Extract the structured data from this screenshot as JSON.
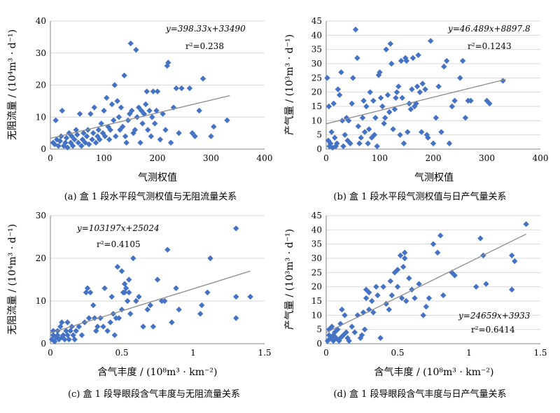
{
  "chart_data": [
    {
      "type": "scatter",
      "caption": "(a) 盒 1 段水平段气测权值与无阻流量关系",
      "xlabel": "气测权值",
      "ylabel": "无阻流量 / (10⁴m³ · d⁻¹)",
      "xlim": [
        0,
        400
      ],
      "ylim": [
        0,
        40
      ],
      "xticks": [
        "0",
        "100",
        "200",
        "300",
        "400"
      ],
      "yticks": [
        "0",
        "10",
        "20",
        "30",
        "40"
      ],
      "equation": "y=398.33x+33490",
      "r2": "r²=0.238",
      "trend": [
        [
          0,
          3.35
        ],
        [
          335,
          16.7
        ]
      ],
      "grid": "horizontal",
      "marker_color": "#4472C4",
      "points": [
        [
          5,
          2
        ],
        [
          8,
          1.5
        ],
        [
          10,
          9
        ],
        [
          12,
          3
        ],
        [
          15,
          1
        ],
        [
          18,
          2.5
        ],
        [
          20,
          4
        ],
        [
          22,
          12
        ],
        [
          25,
          1
        ],
        [
          28,
          2
        ],
        [
          30,
          3.5
        ],
        [
          32,
          0.5
        ],
        [
          35,
          5
        ],
        [
          38,
          2
        ],
        [
          40,
          4
        ],
        [
          42,
          1
        ],
        [
          45,
          3
        ],
        [
          48,
          6
        ],
        [
          50,
          4.5
        ],
        [
          52,
          2
        ],
        [
          55,
          11
        ],
        [
          58,
          1
        ],
        [
          60,
          3
        ],
        [
          62,
          5
        ],
        [
          65,
          2
        ],
        [
          68,
          4
        ],
        [
          70,
          6
        ],
        [
          72,
          1.5
        ],
        [
          75,
          11
        ],
        [
          78,
          3
        ],
        [
          80,
          5
        ],
        [
          82,
          13
        ],
        [
          85,
          2
        ],
        [
          88,
          4
        ],
        [
          90,
          6
        ],
        [
          92,
          3
        ],
        [
          95,
          8
        ],
        [
          98,
          5
        ],
        [
          100,
          12
        ],
        [
          102,
          4
        ],
        [
          105,
          16
        ],
        [
          108,
          7
        ],
        [
          110,
          3
        ],
        [
          112,
          6
        ],
        [
          115,
          14
        ],
        [
          118,
          9
        ],
        [
          120,
          20
        ],
        [
          122,
          4
        ],
        [
          125,
          15
        ],
        [
          128,
          10
        ],
        [
          130,
          6
        ],
        [
          132,
          13
        ],
        [
          135,
          7
        ],
        [
          138,
          23
        ],
        [
          140,
          4
        ],
        [
          142,
          2
        ],
        [
          145,
          9
        ],
        [
          148,
          11
        ],
        [
          150,
          33
        ],
        [
          152,
          12
        ],
        [
          155,
          5
        ],
        [
          158,
          6
        ],
        [
          160,
          31
        ],
        [
          162,
          10
        ],
        [
          165,
          13
        ],
        [
          168,
          2
        ],
        [
          170,
          12
        ],
        [
          172,
          8
        ],
        [
          175,
          11
        ],
        [
          178,
          14
        ],
        [
          180,
          18
        ],
        [
          182,
          6
        ],
        [
          185,
          12
        ],
        [
          188,
          4
        ],
        [
          190,
          10
        ],
        [
          192,
          18
        ],
        [
          195,
          8
        ],
        [
          198,
          12
        ],
        [
          200,
          18
        ],
        [
          205,
          3
        ],
        [
          210,
          11
        ],
        [
          215,
          6
        ],
        [
          218,
          26
        ],
        [
          220,
          27
        ],
        [
          225,
          2
        ],
        [
          230,
          13
        ],
        [
          235,
          19
        ],
        [
          240,
          5
        ],
        [
          245,
          19
        ],
        [
          260,
          19
        ],
        [
          265,
          5
        ],
        [
          270,
          4
        ],
        [
          278,
          12
        ],
        [
          285,
          22
        ],
        [
          300,
          4
        ],
        [
          305,
          7
        ],
        [
          330,
          9
        ]
      ]
    },
    {
      "type": "scatter",
      "caption": "(b) 盒 1 段水平段气测权值与日产气量关系",
      "xlabel": "气测权值",
      "ylabel": "产气量 / (10³m³ · d⁻¹)",
      "xlim": [
        0,
        400
      ],
      "ylim": [
        0,
        45
      ],
      "xticks": [
        "0",
        "100",
        "200",
        "300",
        "400"
      ],
      "yticks": [
        "0",
        "5",
        "10",
        "15",
        "20",
        "25",
        "30",
        "35",
        "40",
        "45"
      ],
      "equation": "y=46.489x+8897.8",
      "r2": "r²=0.1243",
      "trend": [
        [
          0,
          8.9
        ],
        [
          335,
          24.5
        ]
      ],
      "grid": "horizontal",
      "marker_color": "#4472C4",
      "points": [
        [
          2,
          25
        ],
        [
          4,
          3
        ],
        [
          5,
          15
        ],
        [
          6,
          1
        ],
        [
          8,
          2
        ],
        [
          10,
          6
        ],
        [
          12,
          0.5
        ],
        [
          14,
          16
        ],
        [
          16,
          4
        ],
        [
          18,
          1
        ],
        [
          20,
          2
        ],
        [
          22,
          21
        ],
        [
          25,
          19
        ],
        [
          28,
          27
        ],
        [
          30,
          10
        ],
        [
          32,
          1
        ],
        [
          35,
          5
        ],
        [
          38,
          11
        ],
        [
          40,
          3
        ],
        [
          42,
          10
        ],
        [
          45,
          2
        ],
        [
          48,
          16
        ],
        [
          50,
          25
        ],
        [
          55,
          42
        ],
        [
          58,
          32
        ],
        [
          60,
          8
        ],
        [
          62,
          2
        ],
        [
          65,
          4
        ],
        [
          68,
          11
        ],
        [
          70,
          17
        ],
        [
          72,
          6
        ],
        [
          75,
          15
        ],
        [
          78,
          2
        ],
        [
          80,
          7
        ],
        [
          82,
          20
        ],
        [
          85,
          4
        ],
        [
          88,
          17
        ],
        [
          90,
          5
        ],
        [
          92,
          11
        ],
        [
          95,
          1
        ],
        [
          98,
          26
        ],
        [
          100,
          27
        ],
        [
          102,
          18
        ],
        [
          105,
          15
        ],
        [
          108,
          9
        ],
        [
          110,
          11
        ],
        [
          112,
          35
        ],
        [
          115,
          19
        ],
        [
          118,
          13
        ],
        [
          120,
          37
        ],
        [
          122,
          30
        ],
        [
          125,
          7
        ],
        [
          128,
          14
        ],
        [
          130,
          18
        ],
        [
          132,
          20
        ],
        [
          135,
          22
        ],
        [
          138,
          5
        ],
        [
          140,
          31
        ],
        [
          142,
          18
        ],
        [
          145,
          2
        ],
        [
          148,
          32
        ],
        [
          150,
          31
        ],
        [
          152,
          6
        ],
        [
          155,
          16
        ],
        [
          158,
          14
        ],
        [
          160,
          21
        ],
        [
          162,
          32
        ],
        [
          165,
          15
        ],
        [
          168,
          16
        ],
        [
          170,
          22
        ],
        [
          172,
          33
        ],
        [
          175,
          20
        ],
        [
          178,
          6
        ],
        [
          180,
          23
        ],
        [
          185,
          21
        ],
        [
          188,
          5
        ],
        [
          190,
          4
        ],
        [
          195,
          38
        ],
        [
          200,
          2
        ],
        [
          205,
          11
        ],
        [
          210,
          22
        ],
        [
          215,
          6
        ],
        [
          220,
          29
        ],
        [
          225,
          31
        ],
        [
          230,
          2
        ],
        [
          235,
          15
        ],
        [
          240,
          17
        ],
        [
          250,
          25
        ],
        [
          255,
          31
        ],
        [
          260,
          11
        ],
        [
          265,
          17
        ],
        [
          270,
          17
        ],
        [
          300,
          17
        ],
        [
          305,
          16
        ],
        [
          330,
          24
        ]
      ]
    },
    {
      "type": "scatter",
      "caption": "(c) 盒 1 段导眼段含气丰度与无阻流量关系",
      "xlabel": "含气丰度 / (10⁸m³ · km⁻²)",
      "ylabel": "无阻流量 / (10⁴m³ · d⁻¹)",
      "xlim": [
        0,
        1.5
      ],
      "ylim": [
        0,
        30
      ],
      "xticks": [
        "0",
        "0.5",
        "1",
        "1.5"
      ],
      "yticks": [
        "0",
        "10",
        "20",
        "30"
      ],
      "equation": "y=103197x+25024",
      "r2": "r²=0.4105",
      "trend": [
        [
          0,
          2.5
        ],
        [
          1.4,
          17.0
        ]
      ],
      "grid": "horizontal",
      "marker_color": "#4472C4",
      "points": [
        [
          0.01,
          1
        ],
        [
          0.02,
          2
        ],
        [
          0.02,
          3
        ],
        [
          0.03,
          0.5
        ],
        [
          0.04,
          1.5
        ],
        [
          0.05,
          2
        ],
        [
          0.05,
          3
        ],
        [
          0.06,
          1
        ],
        [
          0.07,
          4
        ],
        [
          0.08,
          1.5
        ],
        [
          0.08,
          5
        ],
        [
          0.09,
          2
        ],
        [
          0.1,
          1
        ],
        [
          0.11,
          3
        ],
        [
          0.12,
          2
        ],
        [
          0.12,
          5
        ],
        [
          0.13,
          1
        ],
        [
          0.14,
          3
        ],
        [
          0.15,
          4
        ],
        [
          0.16,
          2
        ],
        [
          0.17,
          1
        ],
        [
          0.18,
          3
        ],
        [
          0.2,
          4
        ],
        [
          0.22,
          2
        ],
        [
          0.24,
          5
        ],
        [
          0.25,
          12
        ],
        [
          0.26,
          13
        ],
        [
          0.27,
          6
        ],
        [
          0.28,
          12
        ],
        [
          0.3,
          9
        ],
        [
          0.31,
          6
        ],
        [
          0.32,
          3
        ],
        [
          0.33,
          4
        ],
        [
          0.35,
          6
        ],
        [
          0.37,
          4
        ],
        [
          0.38,
          13
        ],
        [
          0.4,
          3
        ],
        [
          0.42,
          5
        ],
        [
          0.43,
          11
        ],
        [
          0.44,
          7
        ],
        [
          0.45,
          2
        ],
        [
          0.46,
          6
        ],
        [
          0.47,
          18
        ],
        [
          0.48,
          6
        ],
        [
          0.5,
          8
        ],
        [
          0.5,
          17
        ],
        [
          0.51,
          12
        ],
        [
          0.52,
          12
        ],
        [
          0.52,
          14
        ],
        [
          0.53,
          13
        ],
        [
          0.54,
          10
        ],
        [
          0.55,
          15
        ],
        [
          0.55,
          12
        ],
        [
          0.56,
          7
        ],
        [
          0.58,
          20
        ],
        [
          0.6,
          10
        ],
        [
          0.62,
          11
        ],
        [
          0.65,
          4
        ],
        [
          0.68,
          8
        ],
        [
          0.7,
          9
        ],
        [
          0.72,
          4
        ],
        [
          0.75,
          15
        ],
        [
          0.78,
          10
        ],
        [
          0.8,
          10
        ],
        [
          0.82,
          22
        ],
        [
          0.85,
          5
        ],
        [
          0.88,
          13
        ],
        [
          0.9,
          8
        ],
        [
          1.05,
          7
        ],
        [
          1.06,
          9
        ],
        [
          1.1,
          12
        ],
        [
          1.12,
          20
        ],
        [
          1.3,
          6
        ],
        [
          1.3,
          27
        ],
        [
          1.3,
          11
        ],
        [
          1.4,
          11
        ]
      ]
    },
    {
      "type": "scatter",
      "caption": "(d) 盒 1 段导眼段含气丰度与日产气量关系",
      "xlabel": "含气丰度 / (10⁸m³ · km⁻²)",
      "ylabel": "产气量 / (10³m³ · d⁻¹)",
      "xlim": [
        0,
        1.5
      ],
      "ylim": [
        0,
        45
      ],
      "xticks": [
        "0",
        "0.5",
        "1",
        "1.5"
      ],
      "yticks": [
        "0",
        "5",
        "10",
        "15",
        "20",
        "25",
        "30",
        "35",
        "40",
        "45"
      ],
      "equation": "y=24659x+3933",
      "r2": "r²=0.6414",
      "trend": [
        [
          0,
          3.9
        ],
        [
          1.4,
          38.5
        ]
      ],
      "grid": "horizontal",
      "marker_color": "#4472C4",
      "points": [
        [
          0.01,
          1
        ],
        [
          0.02,
          3
        ],
        [
          0.02,
          5
        ],
        [
          0.03,
          2
        ],
        [
          0.04,
          6
        ],
        [
          0.05,
          1
        ],
        [
          0.05,
          3
        ],
        [
          0.06,
          4
        ],
        [
          0.07,
          2
        ],
        [
          0.08,
          5
        ],
        [
          0.09,
          1
        ],
        [
          0.1,
          2
        ],
        [
          0.1,
          7
        ],
        [
          0.11,
          12
        ],
        [
          0.12,
          3
        ],
        [
          0.13,
          10
        ],
        [
          0.14,
          4
        ],
        [
          0.15,
          2
        ],
        [
          0.16,
          1
        ],
        [
          0.18,
          6
        ],
        [
          0.2,
          4
        ],
        [
          0.22,
          10
        ],
        [
          0.24,
          2
        ],
        [
          0.25,
          3
        ],
        [
          0.26,
          11
        ],
        [
          0.27,
          5
        ],
        [
          0.28,
          16
        ],
        [
          0.28,
          19
        ],
        [
          0.3,
          12
        ],
        [
          0.3,
          18
        ],
        [
          0.32,
          15
        ],
        [
          0.33,
          11
        ],
        [
          0.35,
          20
        ],
        [
          0.36,
          17
        ],
        [
          0.38,
          2
        ],
        [
          0.4,
          20
        ],
        [
          0.42,
          14
        ],
        [
          0.44,
          12
        ],
        [
          0.45,
          22
        ],
        [
          0.46,
          17
        ],
        [
          0.48,
          25
        ],
        [
          0.5,
          26
        ],
        [
          0.5,
          20
        ],
        [
          0.52,
          31
        ],
        [
          0.53,
          16
        ],
        [
          0.54,
          27
        ],
        [
          0.55,
          32
        ],
        [
          0.55,
          30
        ],
        [
          0.56,
          15
        ],
        [
          0.58,
          23
        ],
        [
          0.6,
          19
        ],
        [
          0.62,
          16
        ],
        [
          0.65,
          21
        ],
        [
          0.68,
          10
        ],
        [
          0.7,
          13
        ],
        [
          0.72,
          16
        ],
        [
          0.75,
          35
        ],
        [
          0.78,
          32
        ],
        [
          0.8,
          38
        ],
        [
          0.82,
          17
        ],
        [
          0.88,
          25
        ],
        [
          0.9,
          24
        ],
        [
          1.05,
          20
        ],
        [
          1.08,
          37
        ],
        [
          1.1,
          31
        ],
        [
          1.12,
          21
        ],
        [
          1.3,
          19
        ],
        [
          1.3,
          31
        ],
        [
          1.32,
          29
        ],
        [
          1.4,
          42
        ]
      ]
    }
  ]
}
